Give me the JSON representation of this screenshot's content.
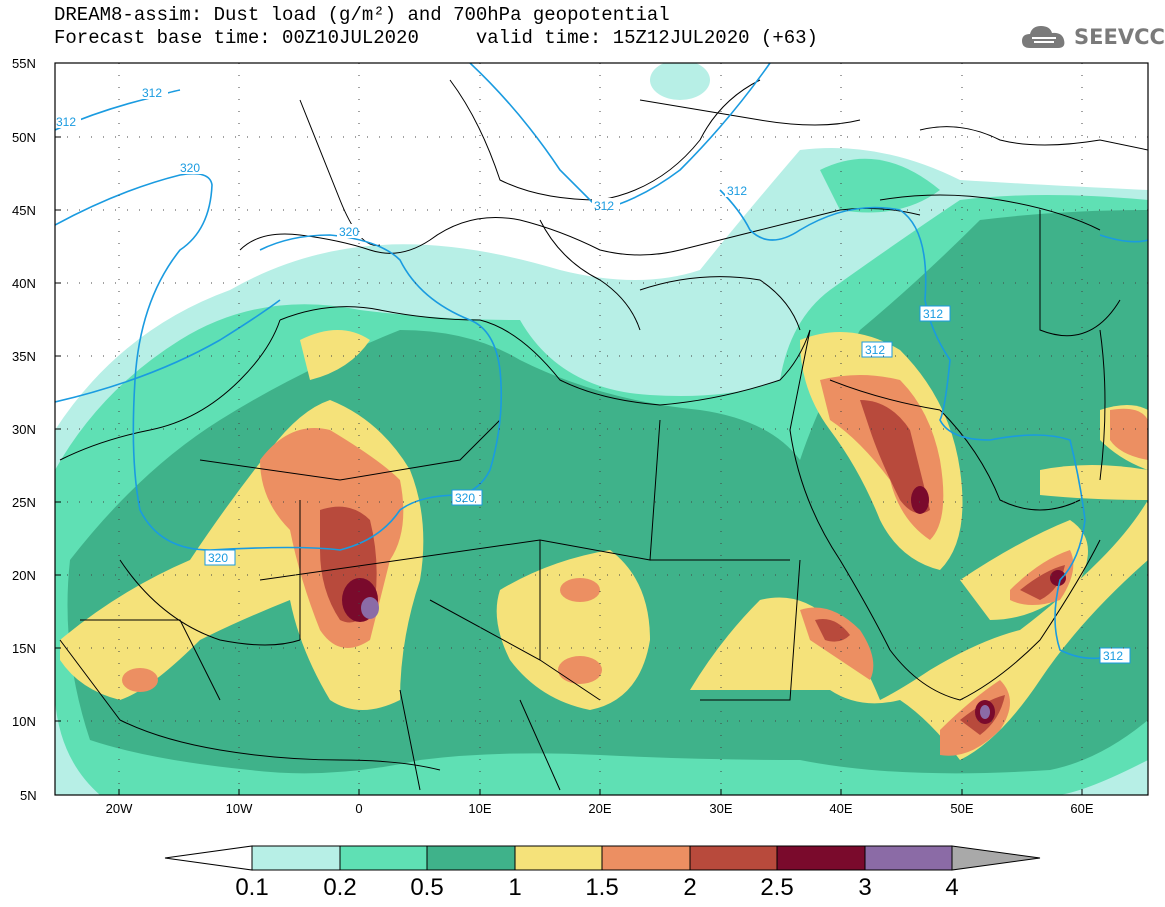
{
  "header": {
    "title_line1": "DREAM8-assim: Dust load (g/m²) and 700hPa geopotential",
    "title_line2": "Forecast base time: 00Z10JUL2020     valid time: 15Z12JUL2020 (+63)"
  },
  "logo": {
    "text": "SEEVCCC",
    "icon": "cloud-icon"
  },
  "axes": {
    "lat_labels": [
      "55N",
      "50N",
      "45N",
      "40N",
      "35N",
      "30N",
      "25N",
      "20N",
      "15N",
      "10N",
      "5N"
    ],
    "lon_labels": [
      "20W",
      "10W",
      "0",
      "10E",
      "20E",
      "30E",
      "40E",
      "50E",
      "60E"
    ]
  },
  "contour_labels": [
    {
      "id": "c312-nw",
      "text": "312"
    },
    {
      "id": "c312-w",
      "text": "312"
    },
    {
      "id": "c320-a",
      "text": "320"
    },
    {
      "id": "c320-b",
      "text": "320"
    },
    {
      "id": "c320-c",
      "text": "320"
    },
    {
      "id": "c320-d",
      "text": "320"
    },
    {
      "id": "c312-bal",
      "text": "312"
    },
    {
      "id": "c312-bs",
      "text": "312"
    },
    {
      "id": "c312-ir",
      "text": "312"
    },
    {
      "id": "c312-sy",
      "text": "312"
    },
    {
      "id": "c312-ar",
      "text": "312"
    }
  ],
  "legend": {
    "labels": [
      "0.1",
      "0.2",
      "0.5",
      "1",
      "1.5",
      "2",
      "2.5",
      "3",
      "4"
    ],
    "colors": [
      "#b7efe6",
      "#5fe0b4",
      "#3fb28a",
      "#f5e27a",
      "#ec8f62",
      "#b84a3c",
      "#7a0a2c",
      "#8b6ba6",
      "#a9a9a9"
    ]
  },
  "colors": {
    "contour": "#1a9be0",
    "land_outline": "#000000"
  }
}
